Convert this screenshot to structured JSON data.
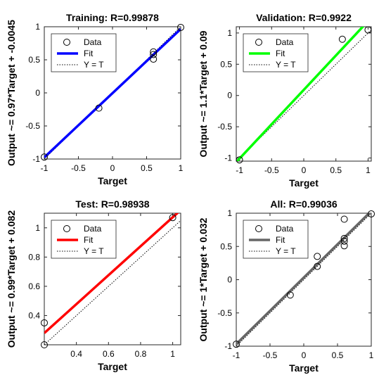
{
  "chart_data": [
    {
      "type": "scatter",
      "title": "Training: R=0.99878",
      "xlabel": "Target",
      "ylabel": "Output ~= 0.97*Target + -0.0045",
      "xlim": [
        -1,
        1
      ],
      "ylim": [
        -1,
        1
      ],
      "xticks": [
        "-1",
        "-0.5",
        "0",
        "0.5",
        "1"
      ],
      "yticks": [
        "-1",
        "-0.5",
        "0",
        "0.5",
        "1"
      ],
      "fit": {
        "slope": 0.97,
        "intercept": -0.0045,
        "color": "#0000ff"
      },
      "points": [
        [
          -1,
          -0.97
        ],
        [
          -0.2,
          -0.23
        ],
        [
          0.6,
          0.62
        ],
        [
          0.6,
          0.58
        ],
        [
          0.6,
          0.51
        ],
        [
          1,
          0.99
        ]
      ],
      "legend": {
        "placement": "top-left",
        "entries": [
          "Data",
          "Fit",
          "Y = T"
        ]
      }
    },
    {
      "type": "scatter",
      "title": "Validation: R=0.9922",
      "xlabel": "Target",
      "ylabel": "Output ~= 1.1*Target + 0.09",
      "xlim": [
        -1.05,
        1.05
      ],
      "ylim": [
        -1.05,
        1.1
      ],
      "xticks": [
        "-1",
        "-0.5",
        "0",
        "0.5",
        "1"
      ],
      "yticks": [
        "-1",
        "-0.5",
        "0",
        "0.5",
        "1"
      ],
      "fit": {
        "slope": 1.1,
        "intercept": 0.09,
        "color": "#00ff00"
      },
      "points": [
        [
          -1,
          -1.03
        ],
        [
          0.6,
          0.9
        ],
        [
          1,
          1.05
        ]
      ],
      "legend": {
        "placement": "top-left",
        "entries": [
          "Data",
          "Fit",
          "Y = T"
        ]
      }
    },
    {
      "type": "scatter",
      "title": "Test: R=0.98938",
      "xlabel": "Target",
      "ylabel": "Output ~= 0.99*Target + 0.082",
      "xlim": [
        0.2,
        1.05
      ],
      "ylim": [
        0.2,
        1.1
      ],
      "xticks": [
        "0.4",
        "0.6",
        "0.8",
        "1"
      ],
      "yticks": [
        "0.4",
        "0.6",
        "0.8",
        "1"
      ],
      "fit": {
        "slope": 0.99,
        "intercept": 0.082,
        "color": "#ff0000"
      },
      "points": [
        [
          0.2,
          0.2
        ],
        [
          0.2,
          0.35
        ],
        [
          1,
          1.07
        ]
      ],
      "legend": {
        "placement": "top-left",
        "entries": [
          "Data",
          "Fit",
          "Y = T"
        ]
      }
    },
    {
      "type": "scatter",
      "title": "All: R=0.99036",
      "xlabel": "Target",
      "ylabel": "Output ~= 1*Target + 0.032",
      "xlim": [
        -1,
        1
      ],
      "ylim": [
        -1,
        1
      ],
      "xticks": [
        "-1",
        "-0.5",
        "0",
        "0.5",
        "1"
      ],
      "yticks": [
        "-1",
        "-0.5",
        "0",
        "0.5",
        "1"
      ],
      "fit": {
        "slope": 1.0,
        "intercept": 0.032,
        "color": "#666666"
      },
      "points": [
        [
          -1,
          -0.97
        ],
        [
          -0.2,
          -0.23
        ],
        [
          0.2,
          0.35
        ],
        [
          0.2,
          0.2
        ],
        [
          0.6,
          0.91
        ],
        [
          0.6,
          0.62
        ],
        [
          0.6,
          0.58
        ],
        [
          0.6,
          0.51
        ],
        [
          1,
          0.99
        ]
      ],
      "legend": {
        "placement": "top-left",
        "entries": [
          "Data",
          "Fit",
          "Y = T"
        ]
      }
    }
  ]
}
